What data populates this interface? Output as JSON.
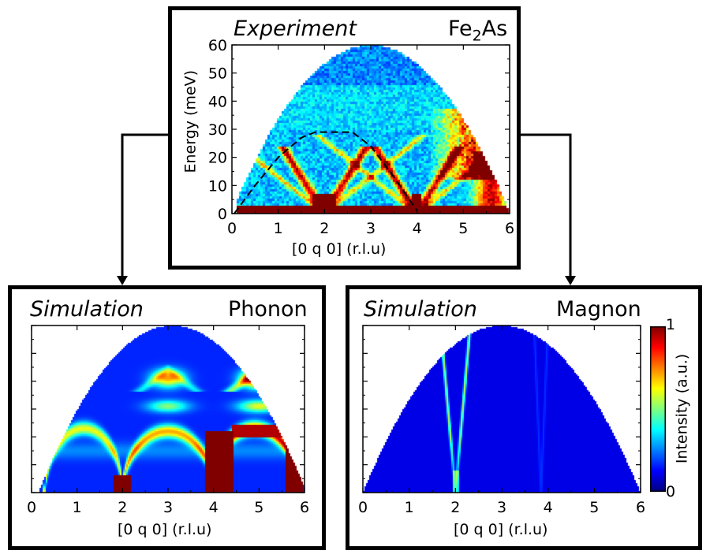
{
  "panels": {
    "experiment": {
      "label": "Experiment",
      "material": "Fe",
      "material_sub": "2",
      "material_end": "As"
    },
    "phonon": {
      "label": "Simulation",
      "kind": "Phonon"
    },
    "magnon": {
      "label": "Simulation",
      "kind": "Magnon"
    }
  },
  "colorbar": {
    "label": "Intensity (a.u.)",
    "max_label": "1",
    "min_label": "0"
  },
  "chart_data": [
    {
      "type": "heatmap",
      "name": "experiment",
      "title": "Experiment Fe2As",
      "xlabel": "[0 q 0] (r.l.u)",
      "ylabel": "Energy (meV)",
      "xlim": [
        0,
        6
      ],
      "ylim": [
        0,
        60
      ],
      "xticks": [
        "0",
        "1",
        "2",
        "3",
        "4",
        "5",
        "6"
      ],
      "yticks": [
        "0",
        "10",
        "20",
        "30",
        "40",
        "50",
        "60"
      ],
      "dashed_dispersion": [
        {
          "x": 0.05,
          "y": 0
        },
        {
          "x": 0.5,
          "y": 10
        },
        {
          "x": 1.0,
          "y": 20
        },
        {
          "x": 1.5,
          "y": 27
        },
        {
          "x": 1.8,
          "y": 29
        },
        {
          "x": 2.6,
          "y": 29
        },
        {
          "x": 3.0,
          "y": 24
        },
        {
          "x": 3.5,
          "y": 13
        },
        {
          "x": 4.0,
          "y": 1
        }
      ],
      "bright_features": [
        {
          "x": 2.0,
          "y_range": [
            0,
            20
          ],
          "label": "V-shaped acoustic cone"
        },
        {
          "x": 4.0,
          "y_range": [
            0,
            20
          ],
          "label": "V-shaped acoustic cone"
        },
        {
          "x": 5.2,
          "y_range": [
            15,
            37
          ],
          "label": "high-intensity optical region"
        }
      ]
    },
    {
      "type": "heatmap",
      "name": "phonon",
      "title": "Simulation Phonon",
      "xlabel": "[0 q 0] (r.l.u)",
      "xlim": [
        0,
        6
      ],
      "ylim": [
        0,
        60
      ],
      "xticks": [
        "0",
        "1",
        "2",
        "3",
        "4",
        "5",
        "6"
      ],
      "bright_features": [
        {
          "x": 2.0,
          "y": 3,
          "label": "Bragg point"
        },
        {
          "x": 4.0,
          "y_range": [
            0,
            20
          ],
          "label": "acoustic arch"
        },
        {
          "x": 5.0,
          "y": 41,
          "label": "optical maximum"
        },
        {
          "x": 3.0,
          "y": 41,
          "label": "optical maximum"
        }
      ]
    },
    {
      "type": "heatmap",
      "name": "magnon",
      "title": "Simulation Magnon",
      "xlabel": "[0 q 0] (r.l.u)",
      "xlim": [
        0,
        6
      ],
      "ylim": [
        0,
        60
      ],
      "xticks": [
        "0",
        "1",
        "2",
        "3",
        "4",
        "5",
        "6"
      ],
      "colorbar_range": [
        0,
        1
      ],
      "bright_features": [
        {
          "x": 2.0,
          "y_range": [
            0,
            60
          ],
          "label": "steep magnon cone"
        },
        {
          "x": 4.0,
          "y_range": [
            0,
            60
          ],
          "label": "faint magnon cone"
        }
      ]
    }
  ]
}
